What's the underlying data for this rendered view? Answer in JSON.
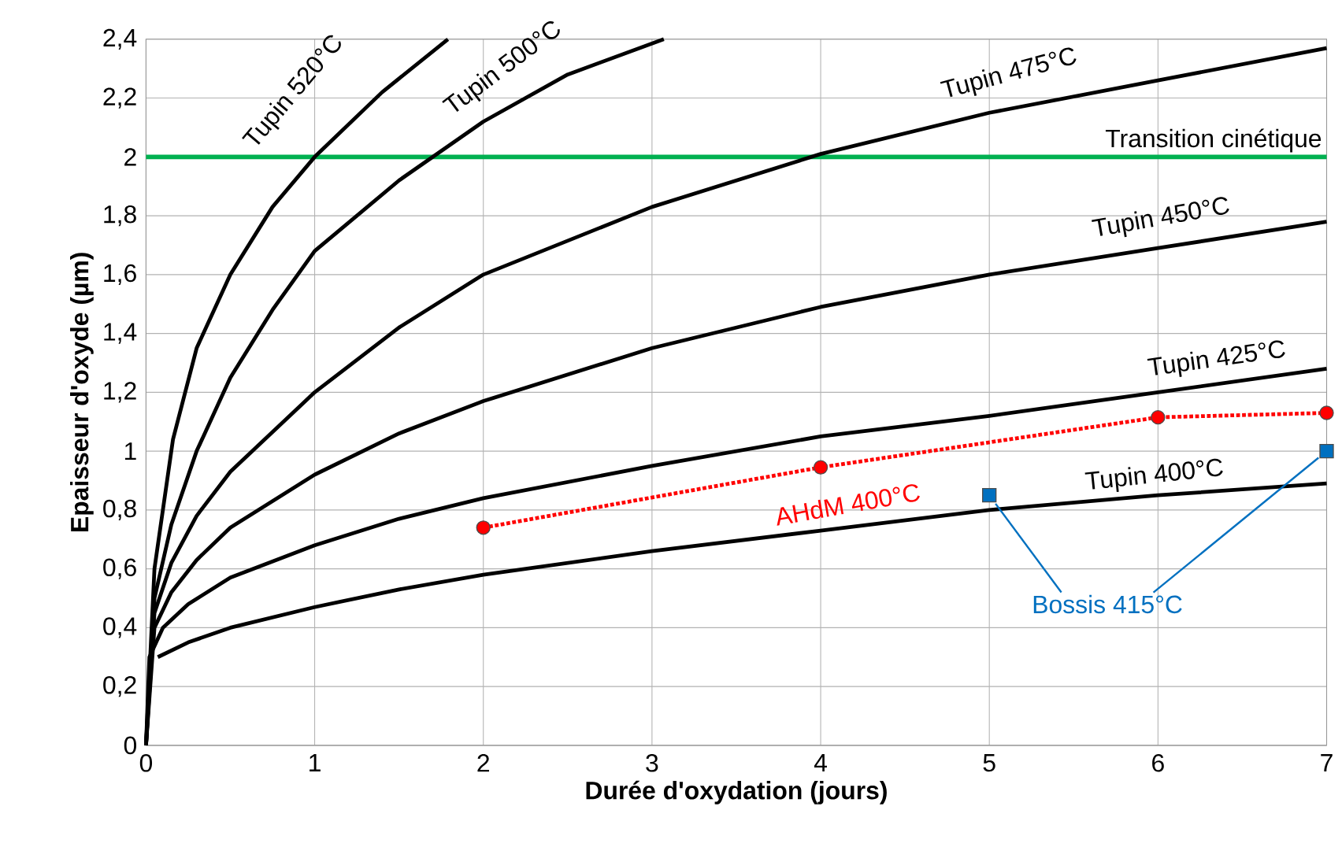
{
  "chart_data": {
    "type": "line",
    "xlabel": "Durée d'oxydation (jours)",
    "ylabel": "Epaisseur d'oxyde (µm)",
    "xlim": [
      0,
      7
    ],
    "xticks": [
      0,
      1,
      2,
      3,
      4,
      5,
      6,
      7
    ],
    "ylim": [
      0,
      2.4
    ],
    "yticks": [
      0,
      {
        "value": 0.2,
        "label": "0,2"
      },
      {
        "value": 0.4,
        "label": "0,4"
      },
      {
        "value": 0.6,
        "label": "0,6"
      },
      {
        "value": 0.8,
        "label": "0,8"
      },
      1,
      {
        "value": 1.2,
        "label": "1,2"
      },
      {
        "value": 1.4,
        "label": "1,4"
      },
      {
        "value": 1.6,
        "label": "1,6"
      },
      {
        "value": 1.8,
        "label": "1,8"
      },
      2,
      {
        "value": 2.2,
        "label": "2,2"
      },
      {
        "value": 2.4,
        "label": "2,4"
      }
    ],
    "grid": true,
    "series": [
      {
        "name": "Tupin 520°C",
        "color": "#000000",
        "marker": "none",
        "x": [
          0,
          0.05,
          0.16,
          0.3,
          0.5,
          0.75,
          1,
          1.4,
          1.79
        ],
        "values": [
          0,
          0.6,
          1.04,
          1.35,
          1.6,
          1.83,
          2.0,
          2.22,
          2.4
        ]
      },
      {
        "name": "Tupin 500°C",
        "color": "#000000",
        "marker": "none",
        "x": [
          0,
          0.05,
          0.15,
          0.3,
          0.5,
          0.75,
          1,
          1.5,
          2,
          2.5,
          3.07
        ],
        "values": [
          0,
          0.5,
          0.75,
          1.0,
          1.25,
          1.48,
          1.68,
          1.92,
          2.12,
          2.28,
          2.4
        ]
      },
      {
        "name": "Tupin 475°C",
        "color": "#000000",
        "marker": "none",
        "x": [
          0,
          0.05,
          0.15,
          0.3,
          0.5,
          1,
          1.5,
          2,
          3,
          4,
          5,
          6,
          7
        ],
        "values": [
          0,
          0.45,
          0.62,
          0.78,
          0.93,
          1.2,
          1.42,
          1.6,
          1.83,
          2.01,
          2.15,
          2.26,
          2.37
        ]
      },
      {
        "name": "Tupin 450°C",
        "color": "#000000",
        "marker": "none",
        "x": [
          0,
          0.05,
          0.15,
          0.3,
          0.5,
          1,
          1.5,
          2,
          3,
          4,
          5,
          6,
          7
        ],
        "values": [
          0,
          0.4,
          0.52,
          0.63,
          0.74,
          0.92,
          1.06,
          1.17,
          1.35,
          1.49,
          1.6,
          1.69,
          1.78
        ]
      },
      {
        "name": "Tupin 425°C",
        "color": "#000000",
        "marker": "none",
        "x": [
          0,
          0.02,
          0.1,
          0.25,
          0.5,
          1,
          1.5,
          2,
          3,
          4,
          5,
          6,
          7
        ],
        "values": [
          0,
          0.3,
          0.4,
          0.48,
          0.57,
          0.68,
          0.77,
          0.84,
          0.95,
          1.05,
          1.12,
          1.2,
          1.28
        ]
      },
      {
        "name": "Tupin 400°C",
        "color": "#000000",
        "marker": "none",
        "x": [
          0.07,
          0.25,
          0.5,
          1,
          1.5,
          2,
          3,
          4,
          5,
          6,
          7
        ],
        "values": [
          0.3,
          0.35,
          0.4,
          0.47,
          0.53,
          0.58,
          0.66,
          0.73,
          0.8,
          0.85,
          0.89
        ]
      },
      {
        "name": "AHdM 400°C",
        "color": "#ff0000",
        "marker": "circle",
        "line_style": "dotted",
        "x": [
          2,
          4,
          6,
          7
        ],
        "values": [
          0.74,
          0.945,
          1.115,
          1.13
        ]
      },
      {
        "name": "Bossis 415°C",
        "type": "scatter",
        "color": "#0070c0",
        "marker": "square",
        "x": [
          5,
          7
        ],
        "values": [
          0.85,
          1.0
        ]
      }
    ],
    "ref_lines": [
      {
        "axis": "y",
        "value": 2,
        "label": "Transition cinétique",
        "color": "#00b050"
      }
    ]
  }
}
